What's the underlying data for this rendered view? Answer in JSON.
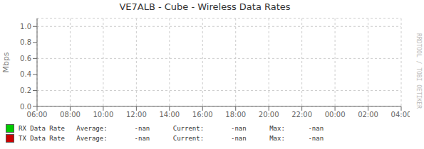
{
  "chart_data": {
    "type": "line",
    "title": "VE7ALB - Cube - Wireless Data Rates",
    "ylabel": "Mbps",
    "categories": [
      "06:00",
      "08:00",
      "10:00",
      "12:00",
      "14:00",
      "16:00",
      "18:00",
      "20:00",
      "22:00",
      "00:00",
      "02:00",
      "04:00"
    ],
    "series": [
      {
        "name": "RX Data Rate   Average:       -nan      Current:       -nan      Max:      -nan",
        "color": "#00cc00",
        "values": [
          null,
          null,
          null,
          null,
          null,
          null,
          null,
          null,
          null,
          null,
          null,
          null
        ]
      },
      {
        "name": "TX Data Rate   Average:       -nan      Current:       -nan      Max:      -nan",
        "color": "#cc0000",
        "values": [
          null,
          null,
          null,
          null,
          null,
          null,
          null,
          null,
          null,
          null,
          null,
          null
        ]
      }
    ],
    "ylim": [
      0.0,
      1.1
    ],
    "yticks": [
      {
        "value": 0.0,
        "label": "0.0"
      },
      0.2,
      0.4,
      0.6,
      0.8,
      {
        "value": 1.0,
        "label": "1.0"
      }
    ],
    "grid": true,
    "legend": "bottom",
    "annotations": [
      "RRDTOOL / TOBI OETIKER"
    ]
  }
}
